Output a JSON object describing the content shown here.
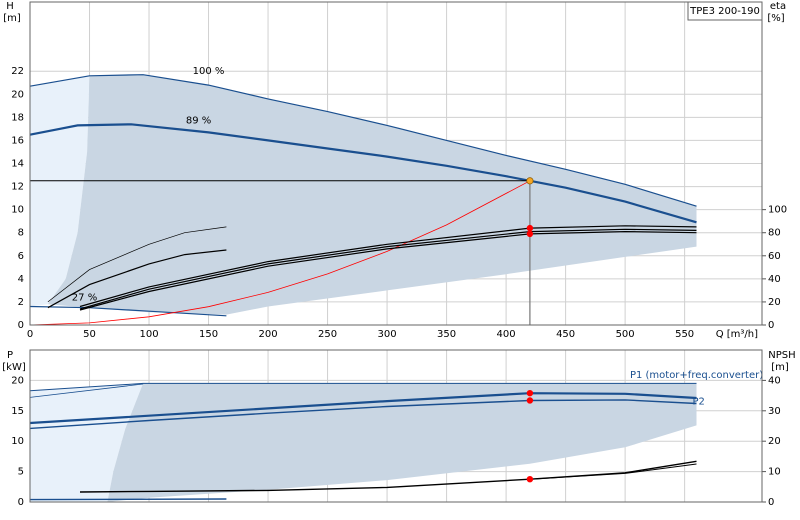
{
  "chart_data": [
    {
      "type": "line",
      "title": "TPE3 200-190",
      "ylabel": "H",
      "yunit": "[m]",
      "y2label": "eta",
      "y2unit": "[%]",
      "xlabel": "Q [m³/h]",
      "xlim": [
        0,
        615
      ],
      "ylim": [
        0,
        28
      ],
      "y2lim": [
        0,
        280
      ],
      "xticks": [
        0,
        50,
        100,
        150,
        200,
        250,
        300,
        350,
        400,
        450,
        500,
        550
      ],
      "yticks": [
        0,
        2,
        4,
        6,
        8,
        10,
        12,
        14,
        16,
        18,
        20,
        22
      ],
      "y2ticks": [
        0,
        20,
        40,
        60,
        80,
        100
      ],
      "grid": true,
      "series": [
        {
          "color": "#e8f1fa",
          "fill": true,
          "x": [
            0,
            50,
            48,
            40,
            30,
            15,
            0
          ],
          "values": [
            20.7,
            21.6,
            15,
            8,
            4,
            1.8,
            1.6
          ]
        },
        {
          "color": "#c9d6e3",
          "fill": true,
          "x": [
            50,
            95,
            150,
            200,
            250,
            300,
            350,
            400,
            450,
            500,
            560,
            560,
            500,
            400,
            300,
            200,
            165,
            100,
            50,
            15,
            30,
            40,
            48
          ],
          "values": [
            21.6,
            21.7,
            20.8,
            19.6,
            18.5,
            17.3,
            16.0,
            14.7,
            13.5,
            12.2,
            10.3,
            6.8,
            5.9,
            4.4,
            3.0,
            1.6,
            0.9,
            1.1,
            1.5,
            1.8,
            4,
            8,
            15
          ]
        },
        {
          "name": "100 %",
          "color": "#1a4f8f",
          "width": 1.2,
          "x": [
            0,
            50,
            95,
            150,
            200,
            250,
            300,
            350,
            400,
            450,
            500,
            560
          ],
          "values": [
            20.7,
            21.6,
            21.7,
            20.8,
            19.6,
            18.5,
            17.3,
            16.0,
            14.7,
            13.5,
            12.2,
            10.3
          ]
        },
        {
          "name": "89 %",
          "color": "#1a4f8f",
          "width": 2.2,
          "x": [
            0,
            40,
            85,
            150,
            200,
            250,
            300,
            350,
            400,
            420,
            450,
            500,
            560
          ],
          "values": [
            16.5,
            17.3,
            17.4,
            16.7,
            16.0,
            15.3,
            14.6,
            13.8,
            12.9,
            12.5,
            11.9,
            10.7,
            8.9
          ]
        },
        {
          "name": "27 %",
          "color": "#1a4f8f",
          "width": 1.2,
          "x": [
            0,
            50,
            100,
            165
          ],
          "values": [
            1.6,
            1.5,
            1.2,
            0.8
          ]
        },
        {
          "color": "#ff0000",
          "width": 0.8,
          "x": [
            0,
            50,
            100,
            150,
            200,
            250,
            300,
            350,
            420
          ],
          "values": [
            0,
            0.18,
            0.71,
            1.59,
            2.83,
            4.43,
            6.38,
            8.68,
            12.5
          ]
        },
        {
          "color": "#000000",
          "width": 0.7,
          "axis": "y2",
          "x": [
            15,
            50,
            100,
            130,
            165
          ],
          "values": [
            20,
            48,
            70,
            80,
            85
          ]
        },
        {
          "color": "#000000",
          "width": 1.2,
          "axis": "y2",
          "x": [
            15,
            50,
            100,
            130,
            165
          ],
          "values": [
            15,
            35,
            53,
            61,
            65
          ]
        },
        {
          "color": "#000000",
          "width": 1.2,
          "axis": "y2",
          "x": [
            42,
            100,
            200,
            300,
            420,
            500,
            560
          ],
          "values": [
            16,
            33,
            55,
            70,
            84,
            86,
            85
          ]
        },
        {
          "color": "#000000",
          "width": 1.2,
          "axis": "y2",
          "x": [
            42,
            100,
            200,
            300,
            420,
            500,
            560
          ],
          "values": [
            14,
            31,
            53,
            68,
            81,
            83,
            82
          ]
        },
        {
          "color": "#000000",
          "width": 1.2,
          "axis": "y2",
          "x": [
            42,
            100,
            200,
            300,
            420,
            500,
            560
          ],
          "values": [
            13,
            29,
            51,
            66,
            79,
            81,
            80
          ]
        }
      ],
      "markers": [
        {
          "x": 420,
          "y": 12.5,
          "color": "#f5a623",
          "guide": true
        },
        {
          "x": 420,
          "y": 84,
          "axis": "y2",
          "color": "#ff0000"
        },
        {
          "x": 420,
          "y": 79,
          "axis": "y2",
          "color": "#ff0000"
        }
      ]
    },
    {
      "type": "line",
      "ylabel": "P",
      "yunit": "[kW]",
      "y2label": "NPSH",
      "y2unit": "[m]",
      "xlim": [
        0,
        615
      ],
      "ylim": [
        0,
        25
      ],
      "y2lim": [
        0,
        50
      ],
      "yticks": [
        0,
        5,
        10,
        15,
        20
      ],
      "y2ticks": [
        0,
        10,
        20,
        30,
        40
      ],
      "grid": true,
      "series": [
        {
          "color": "#e8f1fa",
          "fill": true,
          "x": [
            0,
            95,
            90,
            80,
            70,
            65,
            0
          ],
          "values": [
            18.3,
            19.5,
            17,
            12,
            5,
            0,
            0
          ]
        },
        {
          "color": "#c9d6e3",
          "fill": true,
          "x": [
            95,
            560,
            560,
            500,
            420,
            300,
            200,
            100,
            65,
            70,
            80,
            90
          ],
          "values": [
            19.5,
            19.5,
            12.6,
            9,
            6.3,
            3.6,
            2,
            0.7,
            0,
            5,
            12,
            17
          ]
        },
        {
          "color": "#1a4f8f",
          "width": 1,
          "x": [
            0,
            95,
            560
          ],
          "values": [
            18.3,
            19.5,
            19.5
          ]
        },
        {
          "color": "#1a4f8f",
          "width": 0.8,
          "x": [
            0,
            95
          ],
          "values": [
            17.2,
            19.4
          ]
        },
        {
          "name": "P1 (motor+freq.converter)",
          "color": "#1a4f8f",
          "width": 2.2,
          "x": [
            0,
            100,
            200,
            300,
            420,
            500,
            560
          ],
          "values": [
            13,
            14.2,
            15.4,
            16.6,
            17.9,
            17.8,
            17.1
          ]
        },
        {
          "name": "P2",
          "color": "#1a4f8f",
          "width": 1.4,
          "x": [
            0,
            100,
            200,
            300,
            420,
            500,
            560
          ],
          "values": [
            12.1,
            13.4,
            14.6,
            15.7,
            16.7,
            16.8,
            16.2
          ]
        },
        {
          "color": "#000000",
          "width": 1.4,
          "axis": "y2",
          "x": [
            42,
            100,
            200,
            300,
            420,
            500,
            560
          ],
          "values": [
            3.3,
            3.5,
            3.8,
            4.8,
            7.5,
            9.6,
            13.4
          ]
        },
        {
          "color": "#000000",
          "width": 1,
          "axis": "y2",
          "x": [
            420,
            500,
            560
          ],
          "values": [
            7.5,
            9.4,
            12.5
          ]
        },
        {
          "color": "#1a4f8f",
          "width": 1.4,
          "x": [
            0,
            165
          ],
          "values": [
            0.4,
            0.5
          ]
        }
      ],
      "markers": [
        {
          "x": 420,
          "y": 17.9,
          "color": "#ff0000"
        },
        {
          "x": 420,
          "y": 16.7,
          "color": "#ff0000"
        },
        {
          "x": 420,
          "y": 7.5,
          "axis": "y2",
          "color": "#ff0000"
        }
      ]
    }
  ]
}
